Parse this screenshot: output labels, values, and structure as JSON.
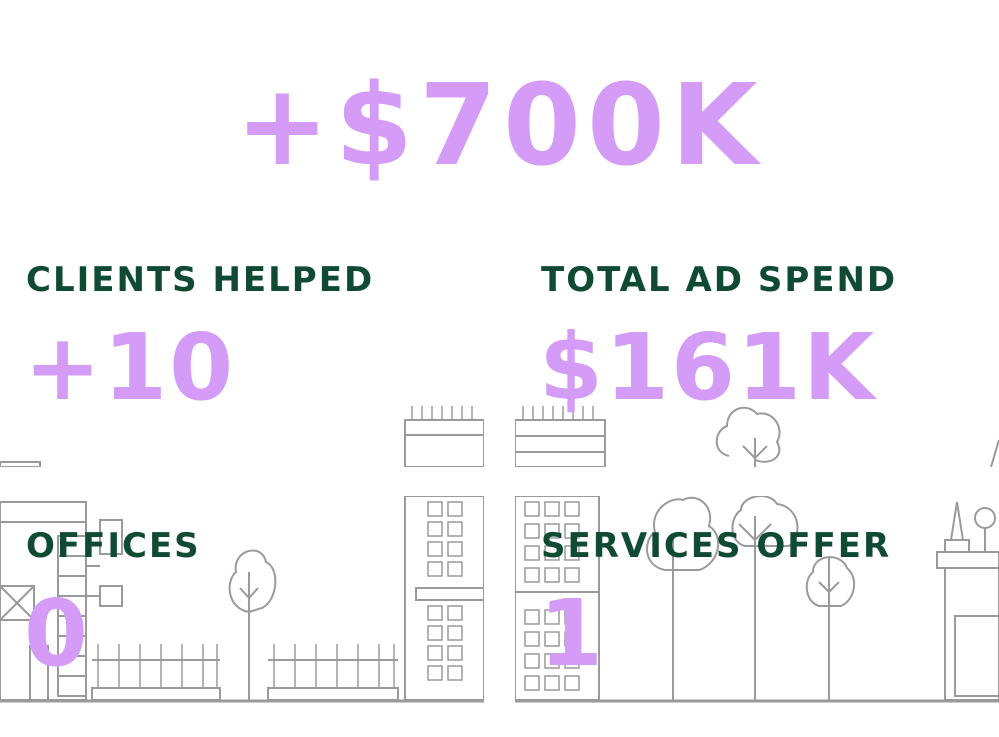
{
  "hero": {
    "value": "+$700K"
  },
  "stats": [
    {
      "label": "CLIENTS HELPED",
      "value": "+10"
    },
    {
      "label": "TOTAL AD SPEND",
      "value": "$161K"
    },
    {
      "label": "OFFICES",
      "value": "0"
    },
    {
      "label": "SERVICES OFFER",
      "value": "1"
    }
  ],
  "colors": {
    "accent": "#d49cf6",
    "label": "#0f4a32",
    "line_art": "#9a9a9a"
  },
  "icons": [
    "x-shape-icon",
    "arc-shape-icon"
  ]
}
